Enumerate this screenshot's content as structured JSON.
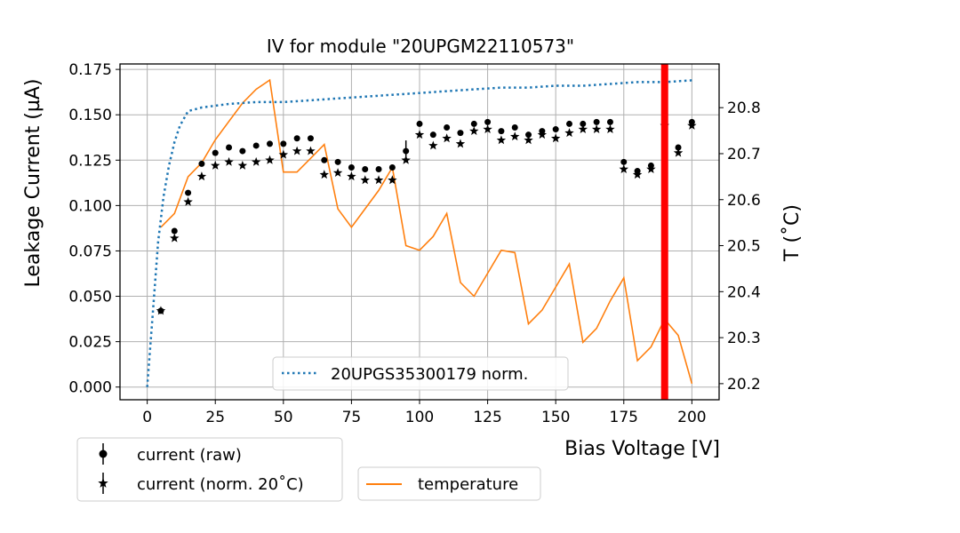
{
  "chart_data": {
    "type": "scatter",
    "title": "IV for module \"20UPGM22110573\"",
    "xlabel": "Bias Voltage [V]",
    "ylabel": "Leakage Current (µA)",
    "y2label": "T (˚C)",
    "xlim": [
      -10,
      210
    ],
    "ylim": [
      -0.007,
      0.178
    ],
    "y2lim": [
      20.165,
      20.895
    ],
    "xticks": [
      0,
      25,
      50,
      75,
      100,
      125,
      150,
      175,
      200
    ],
    "yticks": [
      0.0,
      0.025,
      0.05,
      0.075,
      0.1,
      0.125,
      0.15,
      0.175
    ],
    "ytick_labels": [
      "0.000",
      "0.025",
      "0.050",
      "0.075",
      "0.100",
      "0.125",
      "0.150",
      "0.175"
    ],
    "y2ticks": [
      20.2,
      20.3,
      20.4,
      20.5,
      20.6,
      20.7,
      20.8
    ],
    "y2tick_labels": [
      "20.2",
      "20.3",
      "20.4",
      "20.5",
      "20.6",
      "20.7",
      "20.8"
    ],
    "grid": true,
    "vline": {
      "x": 190,
      "color": "#ff0000"
    },
    "colors": {
      "raw": "#000000",
      "norm": "#000000",
      "temperature": "#ff7f0e",
      "sensor": "#1f77b4",
      "vline": "#ff0000",
      "y2label": "#ff7f0e"
    },
    "legends": {
      "main": [
        {
          "label": "current (raw)",
          "marker": "circle"
        },
        {
          "label": "current (norm. 20˚C)",
          "marker": "star"
        }
      ],
      "temperature": [
        {
          "label": "temperature",
          "style": "line"
        }
      ],
      "sensor": [
        {
          "label": "20UPGS35300179 norm.",
          "style": "dotted"
        }
      ]
    },
    "series": [
      {
        "name": "current (raw)",
        "axis": "left",
        "x": [
          5,
          10,
          15,
          20,
          25,
          30,
          35,
          40,
          45,
          50,
          55,
          60,
          65,
          70,
          75,
          80,
          85,
          90,
          95,
          100,
          105,
          110,
          115,
          120,
          125,
          130,
          135,
          140,
          145,
          150,
          155,
          160,
          165,
          170,
          175,
          180,
          185,
          190,
          195,
          200
        ],
        "values": [
          0.042,
          0.086,
          0.107,
          0.123,
          0.129,
          0.132,
          0.13,
          0.133,
          0.134,
          0.134,
          0.137,
          0.137,
          0.125,
          0.124,
          0.121,
          0.12,
          0.12,
          0.121,
          0.13,
          0.145,
          0.139,
          0.143,
          0.14,
          0.145,
          0.146,
          0.141,
          0.143,
          0.139,
          0.141,
          0.142,
          0.145,
          0.145,
          0.146,
          0.146,
          0.124,
          0.119,
          0.122,
          0.148,
          0.132,
          0.146
        ]
      },
      {
        "name": "current (norm. 20˚C)",
        "axis": "left",
        "x": [
          5,
          10,
          15,
          20,
          25,
          30,
          35,
          40,
          45,
          50,
          55,
          60,
          65,
          70,
          75,
          80,
          85,
          90,
          95,
          100,
          105,
          110,
          115,
          120,
          125,
          130,
          135,
          140,
          145,
          150,
          155,
          160,
          165,
          170,
          175,
          180,
          185,
          190,
          195,
          200
        ],
        "values": [
          0.042,
          0.082,
          0.102,
          0.116,
          0.122,
          0.124,
          0.122,
          0.124,
          0.125,
          0.128,
          0.13,
          0.13,
          0.117,
          0.118,
          0.116,
          0.114,
          0.114,
          0.114,
          0.125,
          0.139,
          0.133,
          0.137,
          0.134,
          0.141,
          0.142,
          0.136,
          0.138,
          0.136,
          0.139,
          0.137,
          0.14,
          0.142,
          0.142,
          0.142,
          0.12,
          0.117,
          0.12,
          0.144,
          0.129,
          0.144
        ]
      },
      {
        "name": "temperature",
        "axis": "right",
        "x": [
          5,
          10,
          15,
          20,
          25,
          30,
          35,
          40,
          45,
          50,
          55,
          60,
          65,
          70,
          75,
          80,
          85,
          90,
          95,
          100,
          105,
          110,
          115,
          120,
          125,
          130,
          135,
          140,
          145,
          150,
          155,
          160,
          165,
          170,
          175,
          180,
          185,
          190,
          195,
          200
        ],
        "values": [
          20.54,
          20.57,
          20.65,
          20.68,
          20.73,
          20.77,
          20.81,
          20.84,
          20.86,
          20.66,
          20.66,
          20.69,
          20.72,
          20.58,
          20.54,
          20.58,
          20.62,
          20.67,
          20.5,
          20.49,
          20.52,
          20.57,
          20.42,
          20.39,
          20.44,
          20.49,
          20.485,
          20.33,
          20.36,
          20.41,
          20.46,
          20.29,
          20.32,
          20.38,
          20.43,
          20.25,
          20.28,
          20.34,
          20.305,
          20.2
        ]
      },
      {
        "name": "20UPGS35300179 norm.",
        "axis": "left",
        "x": [
          0,
          2,
          4,
          6,
          8,
          10,
          12,
          15,
          20,
          30,
          40,
          50,
          60,
          70,
          80,
          90,
          100,
          110,
          120,
          130,
          140,
          150,
          160,
          170,
          180,
          190,
          200
        ],
        "values": [
          0.0,
          0.04,
          0.08,
          0.105,
          0.122,
          0.135,
          0.144,
          0.152,
          0.154,
          0.156,
          0.157,
          0.157,
          0.158,
          0.159,
          0.16,
          0.161,
          0.162,
          0.163,
          0.164,
          0.165,
          0.165,
          0.166,
          0.166,
          0.167,
          0.168,
          0.168,
          0.169
        ]
      }
    ]
  }
}
